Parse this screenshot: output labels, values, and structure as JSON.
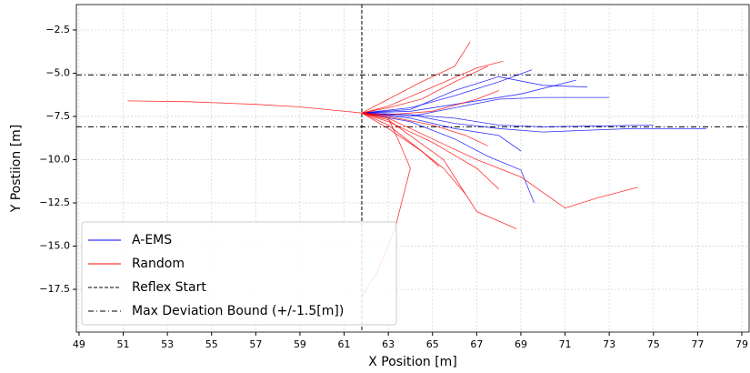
{
  "chart_data": {
    "type": "line",
    "xlabel": "X Position [m]",
    "ylabel": "Y Postiion [m]",
    "xlim": [
      48.88,
      79.33
    ],
    "ylim": [
      -19.97,
      -1.03
    ],
    "xticks": [
      49,
      51,
      53,
      55,
      57,
      59,
      61,
      63,
      65,
      67,
      69,
      71,
      73,
      75,
      77,
      79
    ],
    "yticks": [
      {
        "value": -17.5,
        "label": "−17.5"
      },
      {
        "value": -15.0,
        "label": "−15.0"
      },
      {
        "value": -12.5,
        "label": "−12.5"
      },
      {
        "value": -10.0,
        "label": "−10.0"
      },
      {
        "value": -7.5,
        "label": "−7.5"
      },
      {
        "value": -5.0,
        "label": "−5.0"
      },
      {
        "value": -2.5,
        "label": "−2.5"
      }
    ],
    "grid": true,
    "legend": "lower left",
    "reflex_start": {
      "name": "Reflex Start",
      "x": 61.8,
      "color": "#000000"
    },
    "deviation_bound": {
      "name": "Max Deviation Bound (+/-1.5[m])",
      "y": [
        -5.1,
        -8.1
      ],
      "color": "#000000"
    },
    "series": [
      {
        "name": "A-EMS",
        "color": "#0000ff",
        "lines": [
          {
            "x": [
              61.8,
              64,
              66,
              68,
              70,
              74,
              77.4
            ],
            "y": [
              -7.3,
              -7.4,
              -7.9,
              -8.2,
              -8.4,
              -8.2,
              -8.2
            ]
          },
          {
            "x": [
              61.8,
              64,
              66,
              68,
              69.5
            ],
            "y": [
              -7.3,
              -7.0,
              -6.3,
              -5.5,
              -4.8
            ]
          },
          {
            "x": [
              61.8,
              64,
              66,
              69,
              71.5
            ],
            "y": [
              -7.3,
              -7.2,
              -6.8,
              -6.2,
              -5.4
            ]
          },
          {
            "x": [
              61.8,
              64,
              66,
              68,
              70,
              73
            ],
            "y": [
              -7.3,
              -7.5,
              -7.0,
              -6.5,
              -6.4,
              -6.4
            ]
          },
          {
            "x": [
              61.8,
              64,
              66,
              68,
              69
            ],
            "y": [
              -7.3,
              -7.6,
              -8.2,
              -8.6,
              -9.5
            ]
          },
          {
            "x": [
              61.8,
              64,
              66,
              68,
              70,
              72
            ],
            "y": [
              -7.3,
              -7.1,
              -6.0,
              -5.2,
              -5.7,
              -5.8
            ]
          },
          {
            "x": [
              61.8,
              64,
              66,
              68,
              70,
              75
            ],
            "y": [
              -7.3,
              -7.4,
              -7.6,
              -8.0,
              -8.1,
              -8.0
            ]
          },
          {
            "x": [
              61.8,
              64,
              66,
              67.5,
              69,
              69.6
            ],
            "y": [
              -7.3,
              -7.8,
              -8.8,
              -9.8,
              -10.6,
              -12.5
            ]
          }
        ]
      },
      {
        "name": "Random",
        "color": "#ff0000",
        "lines": [
          {
            "x": [
              51.2,
              54,
              57,
              59,
              61.8
            ],
            "y": [
              -6.6,
              -6.65,
              -6.8,
              -6.95,
              -7.3
            ]
          },
          {
            "x": [
              61.8,
              63,
              64.5,
              66,
              66.7
            ],
            "y": [
              -7.3,
              -6.5,
              -5.5,
              -4.6,
              -3.2
            ]
          },
          {
            "x": [
              61.8,
              63,
              65,
              67,
              68.2
            ],
            "y": [
              -7.3,
              -6.9,
              -5.8,
              -4.7,
              -4.3
            ]
          },
          {
            "x": [
              61.8,
              63,
              63.5,
              64,
              63.3,
              62.5,
              61.8
            ],
            "y": [
              -7.3,
              -7.6,
              -9,
              -10.5,
              -14,
              -16.5,
              -17.9
            ]
          },
          {
            "x": [
              61.8,
              63,
              64.5,
              65.5,
              66.5
            ],
            "y": [
              -7.3,
              -8,
              -9.5,
              -10.5,
              -12
            ]
          },
          {
            "x": [
              61.8,
              63,
              65,
              67,
              68
            ],
            "y": [
              -7.3,
              -7.8,
              -9,
              -10.5,
              -11.7
            ]
          },
          {
            "x": [
              61.8,
              63,
              65.5,
              66.5,
              67,
              68.8
            ],
            "y": [
              -7.3,
              -7.7,
              -10,
              -12,
              -13,
              -14
            ]
          },
          {
            "x": [
              61.8,
              63,
              65,
              67,
              69,
              71,
              72.5,
              74.3
            ],
            "y": [
              -7.3,
              -7.6,
              -8.8,
              -10,
              -11,
              -12.8,
              -12.2,
              -11.6
            ]
          },
          {
            "x": [
              61.8,
              63,
              65,
              66.5,
              67.5
            ],
            "y": [
              -7.3,
              -7.5,
              -8.0,
              -8.6,
              -9.2
            ]
          },
          {
            "x": [
              61.8,
              63,
              64.5,
              66,
              67.5
            ],
            "y": [
              -7.3,
              -7.0,
              -6.5,
              -5.5,
              -4.6
            ]
          },
          {
            "x": [
              61.8,
              63,
              65,
              67,
              68
            ],
            "y": [
              -7.3,
              -7.4,
              -7.2,
              -6.5,
              -6.0
            ]
          },
          {
            "x": [
              61.8,
              63,
              64.5,
              65.3
            ],
            "y": [
              -7.3,
              -8.2,
              -9.5,
              -10.4
            ]
          }
        ]
      }
    ]
  }
}
